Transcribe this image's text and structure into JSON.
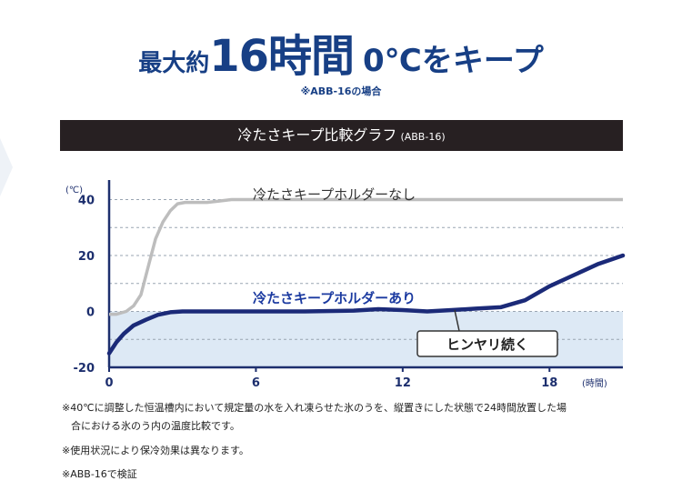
{
  "headline": {
    "prefix": "最大約",
    "hours": "16時間",
    "suffix": "0℃をキープ"
  },
  "subnote": "※ABB-16の場合",
  "banner": {
    "title": "冷たさキープ比較グラフ",
    "model": "(ABB-16)"
  },
  "chart_data": {
    "type": "line",
    "title": "冷たさキープ比較グラフ(ABB-16)",
    "ylabel": "(℃)",
    "xlabel": "(時間)",
    "xlim": [
      0,
      21
    ],
    "ylim": [
      -20,
      47
    ],
    "xticks": [
      0,
      6,
      12,
      18
    ],
    "yticks": [
      40,
      20,
      0,
      -20
    ],
    "xtick_labels": [
      "0",
      "6",
      "12",
      "18"
    ],
    "ytick_labels": [
      "40",
      "20",
      "0",
      "-20"
    ],
    "grid": "horizontal dashed",
    "below_zero_shaded": true,
    "series": [
      {
        "name": "冷たさキープホルダーなし",
        "color": "#bdbdbd",
        "x": [
          0,
          0.3,
          0.7,
          1.0,
          1.3,
          1.6,
          1.9,
          2.2,
          2.5,
          2.8,
          3.1,
          3.5,
          4.0,
          4.5,
          5,
          8,
          12,
          16,
          21
        ],
        "y": [
          -1,
          -1,
          0,
          2,
          6,
          16,
          26,
          32,
          36,
          38.5,
          39,
          39,
          39,
          39.5,
          40,
          40,
          40,
          40,
          40
        ]
      },
      {
        "name": "冷たさキープホルダーあり",
        "color": "#1b2a78",
        "x": [
          0,
          0.3,
          0.6,
          1.0,
          1.5,
          2.0,
          2.5,
          3.0,
          4,
          6,
          8,
          10,
          11,
          12,
          13,
          14,
          15,
          16,
          17,
          18,
          19,
          20,
          21
        ],
        "y": [
          -15,
          -11,
          -8,
          -5,
          -3,
          -1.2,
          -0.3,
          0,
          0,
          0,
          0,
          0.3,
          0.8,
          0.5,
          0,
          0.5,
          1,
          1.5,
          4,
          9,
          13,
          17,
          20
        ]
      }
    ],
    "annotations": [
      {
        "text": "ヒンヤリ続く",
        "x": 16.5,
        "y": -3
      }
    ]
  },
  "footnotes": [
    "※40℃に調整した恒温槽内において規定量の水を入れ凍らせた氷のうを、縦置きにした状態で24時間放置した場",
    "合における氷のう内の温度比較です。",
    "※使用状況により保冷効果は異なります。",
    "※ABB-16で検証"
  ]
}
